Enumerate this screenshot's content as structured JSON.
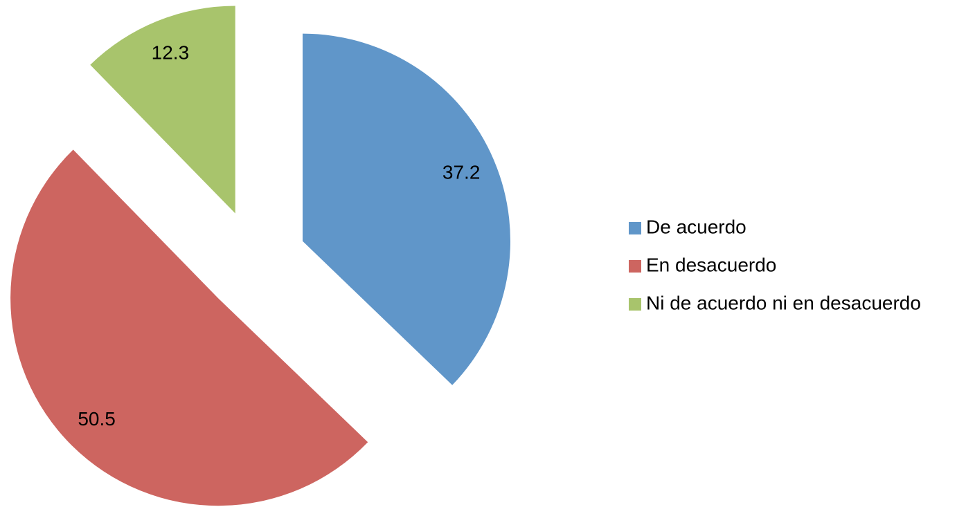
{
  "chart_data": {
    "type": "pie",
    "categories": [
      "De acuerdo",
      "En desacuerdo",
      "Ni de acuerdo ni en desacuerdo"
    ],
    "values": [
      37.2,
      50.5,
      12.3
    ],
    "colors": [
      "#6096c9",
      "#cd6560",
      "#a8c46c"
    ],
    "exploded": true,
    "legend": "right"
  }
}
